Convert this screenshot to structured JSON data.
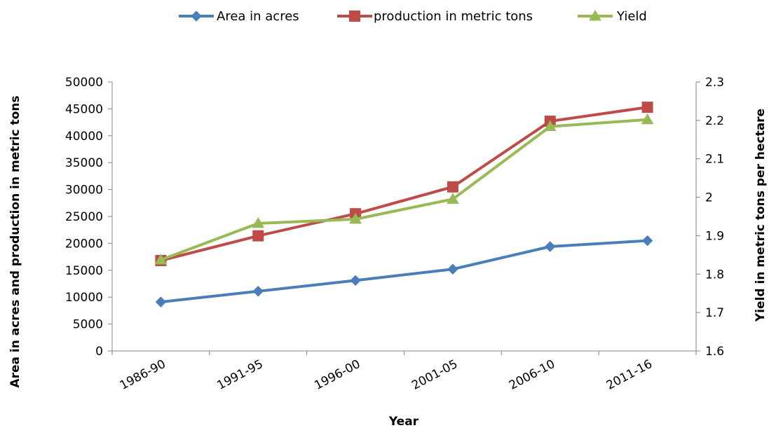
{
  "chart_data": {
    "type": "line",
    "categories": [
      "1986-90",
      "1991-95",
      "1996-00",
      "2001-05",
      "2006-10",
      "2011-16"
    ],
    "xlabel": "Year",
    "ylabel_left": "Area in acres and production in metric tons",
    "ylabel_right": "Yield in metric tons per hectare",
    "ylim_left": [
      0,
      50000
    ],
    "yticks_left": [
      "0",
      "5000",
      "10000",
      "15000",
      "20000",
      "25000",
      "30000",
      "35000",
      "40000",
      "45000",
      "50000"
    ],
    "ylim_right": [
      1.6,
      2.3
    ],
    "yticks_right": [
      "1.6",
      "1.7",
      "1.8",
      "1.9",
      "2",
      "2.1",
      "2.2",
      "2.3"
    ],
    "grid": false,
    "legend_position": "top",
    "series": [
      {
        "name": "Area in acres",
        "axis": "left",
        "color": "#4a7ebb",
        "marker": "diamond",
        "values": [
          9100,
          11100,
          13100,
          15200,
          19400,
          20500
        ]
      },
      {
        "name": "production in metric tons",
        "axis": "left",
        "color": "#be4b48",
        "marker": "square",
        "values": [
          16800,
          21400,
          25500,
          30500,
          42700,
          45300
        ]
      },
      {
        "name": "Yield",
        "axis": "right",
        "color": "#98b954",
        "marker": "triangle",
        "values": [
          1.837,
          1.932,
          1.943,
          1.995,
          2.184,
          2.202
        ]
      }
    ]
  }
}
